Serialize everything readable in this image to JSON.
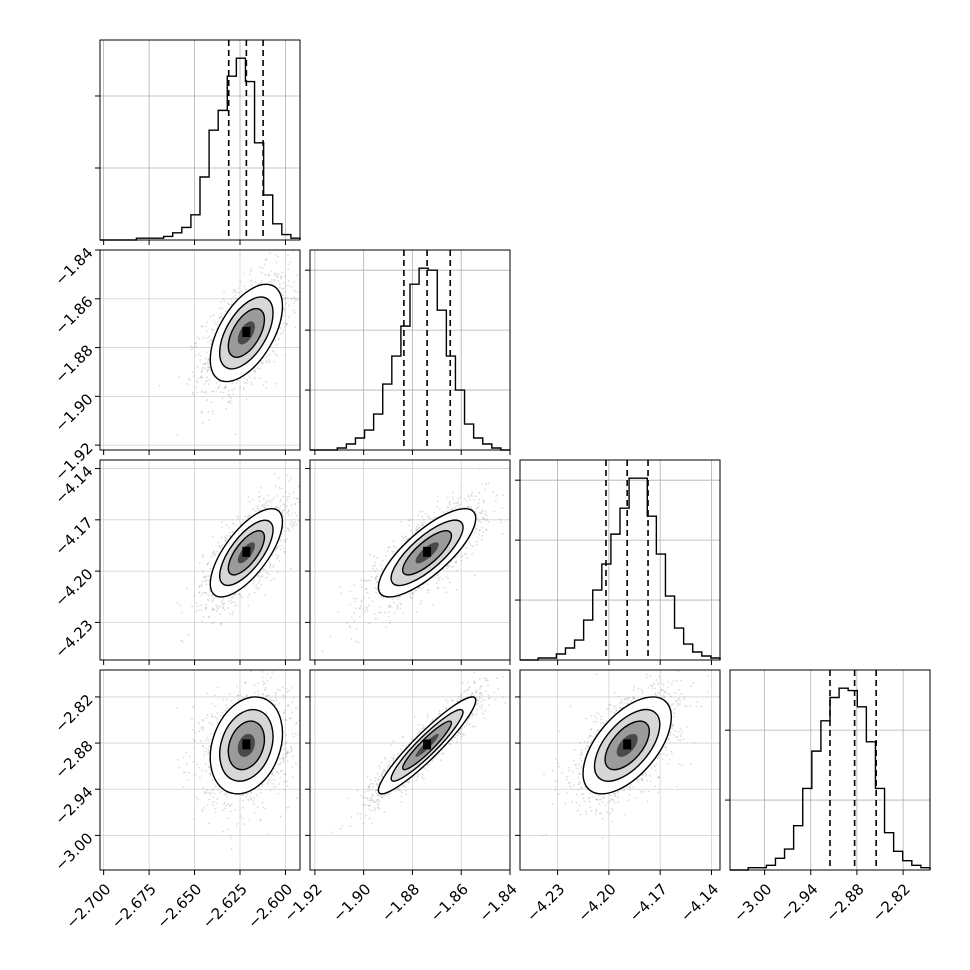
{
  "chart_data": {
    "type": "corner",
    "grid": true,
    "parameters": [
      {
        "range": [
          -2.702,
          -2.592
        ],
        "ticks": [
          -2.7,
          -2.675,
          -2.65,
          -2.625,
          -2.6
        ],
        "tick_labels": [
          "−2.700",
          "−2.675",
          "−2.650",
          "−2.625",
          "−2.600"
        ],
        "quantiles": [
          -2.6312,
          -2.6215,
          -2.6123
        ],
        "histogram": {
          "edges_range": [
            -2.702,
            -2.592
          ],
          "counts": [
            0,
            0,
            0,
            0,
            1,
            1,
            1,
            2,
            4,
            7,
            14,
            35,
            61,
            72,
            91,
            101,
            88,
            54,
            25,
            9,
            3,
            1
          ]
        }
      },
      {
        "range": [
          -1.922,
          -1.84
        ],
        "ticks": [
          -1.92,
          -1.9,
          -1.88,
          -1.86,
          -1.84
        ],
        "tick_labels": [
          "−1.92",
          "−1.90",
          "−1.88",
          "−1.86",
          "−1.84"
        ],
        "quantiles": [
          -1.8835,
          -1.874,
          -1.8645
        ],
        "histogram": {
          "edges_range": [
            -1.922,
            -1.84
          ],
          "counts": [
            0,
            0,
            0,
            1,
            3,
            6,
            10,
            18,
            33,
            47,
            62,
            83,
            91,
            90,
            70,
            47,
            30,
            13,
            6,
            3,
            1,
            0
          ]
        }
      },
      {
        "range": [
          -4.252,
          -4.135
        ],
        "ticks": [
          -4.23,
          -4.2,
          -4.17,
          -4.14
        ],
        "tick_labels": [
          "−4.23",
          "−4.20",
          "−4.17",
          "−4.14"
        ],
        "quantiles": [
          -4.2017,
          -4.1893,
          -4.1771
        ],
        "histogram": {
          "edges_range": [
            -4.252,
            -4.135
          ],
          "counts": [
            0,
            0,
            1,
            1,
            3,
            6,
            10,
            20,
            35,
            48,
            63,
            76,
            91,
            91,
            72,
            53,
            32,
            16,
            8,
            4,
            2,
            1
          ]
        }
      },
      {
        "range": [
          -3.045,
          -2.785
        ],
        "ticks": [
          -3.0,
          -2.94,
          -2.88,
          -2.82
        ],
        "tick_labels": [
          "−3.00",
          "−2.94",
          "−2.88",
          "−2.82"
        ],
        "quantiles": [
          -2.915,
          -2.883,
          -2.855
        ],
        "histogram": {
          "edges_range": [
            -3.045,
            -2.785
          ],
          "counts": [
            0,
            0,
            1,
            1,
            2,
            5,
            9,
            19,
            35,
            51,
            64,
            74,
            78,
            77,
            70,
            55,
            35,
            16,
            8,
            4,
            2,
            1
          ]
        }
      }
    ],
    "correlations": [
      {
        "pair": [
          0,
          1
        ],
        "rho": 0.55
      },
      {
        "pair": [
          0,
          2
        ],
        "rho": 0.7
      },
      {
        "pair": [
          1,
          2
        ],
        "rho": 0.78
      },
      {
        "pair": [
          0,
          3
        ],
        "rho": 0.25
      },
      {
        "pair": [
          1,
          3
        ],
        "rho": 0.93
      },
      {
        "pair": [
          2,
          3
        ],
        "rho": 0.58
      }
    ]
  }
}
